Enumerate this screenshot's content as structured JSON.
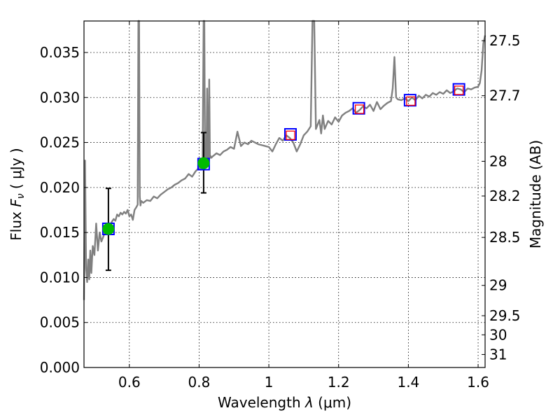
{
  "chart_data": {
    "type": "line",
    "title": "",
    "xlabel_prefix": "Wavelength  ",
    "xlabel_symbol": "λ",
    "xlabel_unit": " (μm)",
    "ylabel_prefix": "Flux  ",
    "ylabel_symbol": "F",
    "ylabel_subscript": "ν",
    "ylabel_unit": "  ( μJy )",
    "y2label": "Magnitude (AB)",
    "xlim": [
      0.47,
      1.62
    ],
    "ylim": [
      0.0,
      0.0385
    ],
    "grid": true,
    "x_ticks": [
      {
        "value": 0.6,
        "label": "0.6"
      },
      {
        "value": 0.8,
        "label": "0.8"
      },
      {
        "value": 1.0,
        "label": "1"
      },
      {
        "value": 1.2,
        "label": "1.2"
      },
      {
        "value": 1.4,
        "label": "1.4"
      },
      {
        "value": 1.6,
        "label": "1.6"
      }
    ],
    "y_ticks": [
      {
        "value": 0.0,
        "label": "0.000"
      },
      {
        "value": 0.005,
        "label": "0.005"
      },
      {
        "value": 0.01,
        "label": "0.010"
      },
      {
        "value": 0.015,
        "label": "0.015"
      },
      {
        "value": 0.02,
        "label": "0.020"
      },
      {
        "value": 0.025,
        "label": "0.025"
      },
      {
        "value": 0.03,
        "label": "0.030"
      },
      {
        "value": 0.035,
        "label": "0.035"
      }
    ],
    "magnitude_ticks": [
      {
        "value": 27.5,
        "label": "27.5"
      },
      {
        "value": 27.7,
        "label": "27.7"
      },
      {
        "value": 28.0,
        "label": "28"
      },
      {
        "value": 28.2,
        "label": "28.2"
      },
      {
        "value": 28.5,
        "label": "28.5"
      },
      {
        "value": 29.0,
        "label": "29"
      },
      {
        "value": 29.5,
        "label": "29.5"
      },
      {
        "value": 30.0,
        "label": "30"
      },
      {
        "value": 31.0,
        "label": "31"
      }
    ],
    "series": [
      {
        "name": "model spectrum",
        "color": "#808080",
        "x": [
          0.47,
          0.473,
          0.476,
          0.479,
          0.482,
          0.485,
          0.488,
          0.491,
          0.495,
          0.5,
          0.505,
          0.51,
          0.515,
          0.52,
          0.525,
          0.53,
          0.535,
          0.54,
          0.545,
          0.55,
          0.555,
          0.56,
          0.565,
          0.57,
          0.575,
          0.58,
          0.585,
          0.59,
          0.595,
          0.6,
          0.605,
          0.61,
          0.615,
          0.62,
          0.624,
          0.626,
          0.628,
          0.63,
          0.632,
          0.634,
          0.64,
          0.65,
          0.66,
          0.67,
          0.68,
          0.69,
          0.7,
          0.71,
          0.72,
          0.73,
          0.74,
          0.75,
          0.76,
          0.77,
          0.78,
          0.79,
          0.8,
          0.805,
          0.81,
          0.813,
          0.815,
          0.817,
          0.819,
          0.821,
          0.823,
          0.825,
          0.827,
          0.829,
          0.831,
          0.833,
          0.835,
          0.84,
          0.85,
          0.86,
          0.87,
          0.88,
          0.89,
          0.9,
          0.91,
          0.92,
          0.93,
          0.94,
          0.95,
          0.96,
          0.97,
          0.98,
          0.99,
          1.0,
          1.01,
          1.02,
          1.03,
          1.04,
          1.05,
          1.06,
          1.07,
          1.08,
          1.09,
          1.1,
          1.11,
          1.12,
          1.125,
          1.13,
          1.135,
          1.14,
          1.145,
          1.15,
          1.155,
          1.16,
          1.17,
          1.18,
          1.19,
          1.2,
          1.21,
          1.22,
          1.23,
          1.24,
          1.25,
          1.26,
          1.27,
          1.28,
          1.29,
          1.3,
          1.31,
          1.32,
          1.33,
          1.34,
          1.35,
          1.355,
          1.36,
          1.365,
          1.37,
          1.38,
          1.39,
          1.4,
          1.41,
          1.42,
          1.43,
          1.44,
          1.45,
          1.46,
          1.47,
          1.48,
          1.49,
          1.5,
          1.51,
          1.52,
          1.53,
          1.54,
          1.55,
          1.56,
          1.57,
          1.58,
          1.59,
          1.6,
          1.605,
          1.61,
          1.615,
          1.62
        ],
        "y": [
          0.0075,
          0.023,
          0.011,
          0.0095,
          0.012,
          0.0098,
          0.013,
          0.0105,
          0.0135,
          0.0125,
          0.016,
          0.013,
          0.015,
          0.014,
          0.0145,
          0.015,
          0.0155,
          0.016,
          0.0158,
          0.0162,
          0.0165,
          0.0163,
          0.017,
          0.0168,
          0.0172,
          0.017,
          0.0173,
          0.0171,
          0.0175,
          0.0168,
          0.017,
          0.0164,
          0.0175,
          0.0178,
          0.0181,
          0.0385,
          0.0385,
          0.019,
          0.018,
          0.0185,
          0.0183,
          0.0186,
          0.0185,
          0.019,
          0.0188,
          0.0192,
          0.0195,
          0.0198,
          0.02,
          0.0203,
          0.0205,
          0.0208,
          0.021,
          0.0215,
          0.0212,
          0.0218,
          0.0222,
          0.022,
          0.0225,
          0.0385,
          0.0385,
          0.0226,
          0.0224,
          0.0228,
          0.031,
          0.0232,
          0.023,
          0.032,
          0.0233,
          0.0235,
          0.0233,
          0.0235,
          0.0238,
          0.0236,
          0.024,
          0.0242,
          0.0245,
          0.0243,
          0.0262,
          0.0246,
          0.025,
          0.0248,
          0.0252,
          0.025,
          0.0248,
          0.0247,
          0.0246,
          0.0245,
          0.024,
          0.0248,
          0.0255,
          0.0252,
          0.0258,
          0.0255,
          0.025,
          0.024,
          0.0248,
          0.0258,
          0.0262,
          0.0268,
          0.0385,
          0.0385,
          0.0265,
          0.027,
          0.0275,
          0.026,
          0.028,
          0.0265,
          0.0274,
          0.027,
          0.0278,
          0.0273,
          0.028,
          0.0283,
          0.0285,
          0.0288,
          0.0283,
          0.0286,
          0.029,
          0.0288,
          0.0292,
          0.0285,
          0.0295,
          0.0287,
          0.0291,
          0.0294,
          0.0296,
          0.031,
          0.0345,
          0.03,
          0.0298,
          0.0297,
          0.0299,
          0.0296,
          0.03,
          0.0297,
          0.0302,
          0.0299,
          0.0303,
          0.0301,
          0.0305,
          0.0303,
          0.0306,
          0.0304,
          0.0308,
          0.0305,
          0.0307,
          0.031,
          0.0309,
          0.0306,
          0.031,
          0.0309,
          0.0311,
          0.0312,
          0.0316,
          0.033,
          0.036,
          0.0369
        ]
      }
    ],
    "observed_points": {
      "name": "observed photometry",
      "color": "#00bb00",
      "errorbar_color": "#000000",
      "points": [
        {
          "x": 0.54,
          "y": 0.0154,
          "yerr_low": 0.0046,
          "yerr_high": 0.0045
        },
        {
          "x": 0.813,
          "y": 0.0227,
          "yerr_low": 0.0033,
          "yerr_high": 0.0034
        }
      ]
    },
    "model_photometry": {
      "name": "model photometry (blue squares)",
      "color": "#0000ff",
      "points": [
        {
          "x": 0.54,
          "y": 0.0154
        },
        {
          "x": 0.813,
          "y": 0.0226
        },
        {
          "x": 1.062,
          "y": 0.0259
        },
        {
          "x": 1.258,
          "y": 0.0288
        },
        {
          "x": 1.405,
          "y": 0.0297
        },
        {
          "x": 1.545,
          "y": 0.0309
        }
      ]
    },
    "upper_points": {
      "name": "photometry (red open squares)",
      "color": "#ff0000",
      "points": [
        {
          "x": 1.062,
          "y": 0.0258
        },
        {
          "x": 1.26,
          "y": 0.0287
        },
        {
          "x": 1.407,
          "y": 0.0296
        },
        {
          "x": 1.545,
          "y": 0.0308
        }
      ]
    }
  }
}
